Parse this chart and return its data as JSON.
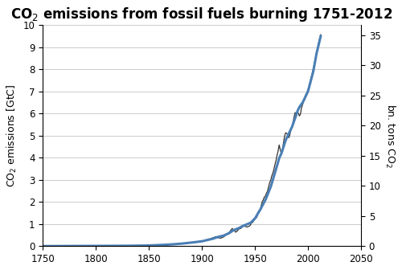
{
  "title": "CO$_2$ emissions from fossil fuels burning 1751-2012",
  "ylabel_left": "CO$_2$ emissions [GtC]",
  "ylabel_right": "bn. tons CO$_2$",
  "xlim": [
    1750,
    2050
  ],
  "ylim_left": [
    0,
    10
  ],
  "ylim_right": [
    0,
    36.67
  ],
  "xticks": [
    1750,
    1800,
    1850,
    1900,
    1950,
    2000,
    2050
  ],
  "yticks_left": [
    0,
    1,
    2,
    3,
    4,
    5,
    6,
    7,
    8,
    9,
    10
  ],
  "yticks_right": [
    0,
    5,
    10,
    15,
    20,
    25,
    30,
    35
  ],
  "smooth_color": "#4a7fb5",
  "jagged_color": "#333333",
  "background_color": "#ffffff",
  "grid_color": "#cccccc",
  "title_fontsize": 12,
  "axis_label_fontsize": 9,
  "tick_fontsize": 8.5
}
